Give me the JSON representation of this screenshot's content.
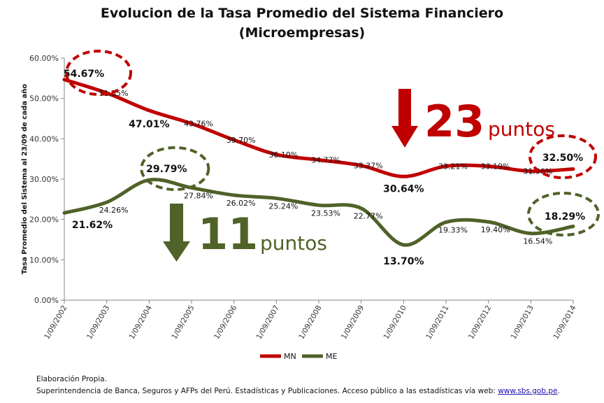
{
  "chart_data": {
    "type": "line",
    "title": "Evolucion de la Tasa Promedio del Sistema Financiero",
    "subtitle": "(Microempresas)",
    "ylabel": "Tasa Promedio del Sistema al 23/09 de cada año",
    "xlabel": "",
    "ylim": [
      0,
      60
    ],
    "yticks": [
      "0.00%",
      "10.00%",
      "20.00%",
      "30.00%",
      "40.00%",
      "50.00%",
      "60.00%"
    ],
    "categories": [
      "1/09/2002",
      "1/09/2003",
      "1/09/2004",
      "1/09/2005",
      "1/09/2006",
      "1/09/2007",
      "1/09/2008",
      "1/09/2009",
      "1/09/2010",
      "1/09/2011",
      "1/09/2012",
      "1/09/2013",
      "1/09/2014"
    ],
    "series": [
      {
        "name": "MN",
        "color": "#c00000",
        "values": [
          54.67,
          51.35,
          47.01,
          43.76,
          39.7,
          36.1,
          34.77,
          33.37,
          30.64,
          33.21,
          33.19,
          31.96,
          32.5
        ],
        "labels": [
          "54.67%",
          "51.35%",
          "47.01%",
          "43.76%",
          "39.70%",
          "36.10%",
          "34.77%",
          "33.37%",
          "30.64%",
          "33.21%",
          "33.19%",
          "31.96%",
          "32.50%"
        ]
      },
      {
        "name": "ME",
        "color": "#4f6228",
        "values": [
          21.62,
          24.26,
          29.79,
          27.84,
          26.02,
          25.24,
          23.53,
          22.77,
          13.7,
          19.33,
          19.4,
          16.54,
          18.29
        ],
        "labels": [
          "21.62%",
          "24.26%",
          "29.79%",
          "27.84%",
          "26.02%",
          "25.24%",
          "23.53%",
          "22.77%",
          "13.70%",
          "19.33%",
          "19.40%",
          "16.54%",
          "18.29%"
        ]
      }
    ],
    "grid": false,
    "legend_position": "bottom",
    "annotations": {
      "mn_drop_number": "23",
      "mn_drop_word": "puntos",
      "me_drop_number": "11",
      "me_drop_word": "puntos"
    }
  },
  "footer": {
    "line1": "Elaboración Propia.",
    "line2_text": "Superintendencia de Banca, Seguros y AFPs del Perú.  Estadísticas y Publicaciones. Acceso público a las estadísticas vía web: ",
    "line2_link": "www.sbs.gob.pe",
    "line2_end": "."
  }
}
